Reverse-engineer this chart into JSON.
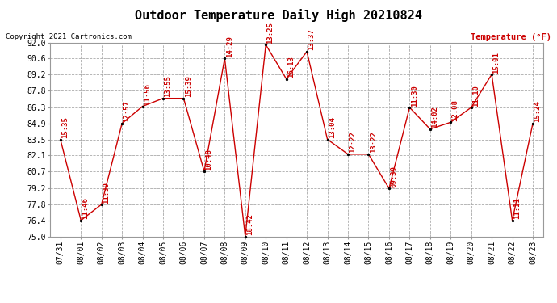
{
  "title": "Outdoor Temperature Daily High 20210824",
  "copyright": "Copyright 2021 Cartronics.com",
  "ylabel": "Temperature (°F)",
  "dates": [
    "07/31",
    "08/01",
    "08/02",
    "08/03",
    "08/04",
    "08/05",
    "08/06",
    "08/07",
    "08/08",
    "08/09",
    "08/10",
    "08/11",
    "08/12",
    "08/13",
    "08/14",
    "08/15",
    "08/16",
    "08/17",
    "08/18",
    "08/19",
    "08/20",
    "08/21",
    "08/22",
    "08/23"
  ],
  "temps": [
    83.5,
    76.4,
    77.8,
    84.9,
    86.4,
    87.1,
    87.1,
    80.7,
    90.6,
    75.0,
    91.8,
    88.8,
    91.2,
    83.5,
    82.2,
    82.2,
    79.2,
    86.3,
    84.4,
    85.0,
    86.3,
    89.2,
    76.4,
    84.9
  ],
  "times": [
    "15:35",
    "11:46",
    "11:39",
    "12:57",
    "11:56",
    "13:55",
    "15:39",
    "10:48",
    "14:29",
    "18:42",
    "13:25",
    "16:13",
    "13:37",
    "13:04",
    "12:22",
    "13:22",
    "09:39",
    "11:30",
    "14:02",
    "12:08",
    "11:10",
    "15:01",
    "11:11",
    "15:24"
  ],
  "ylim_min": 75.0,
  "ylim_max": 92.0,
  "yticks": [
    75.0,
    76.4,
    77.8,
    79.2,
    80.7,
    82.1,
    83.5,
    84.9,
    86.3,
    87.8,
    89.2,
    90.6,
    92.0
  ],
  "line_color": "#cc0000",
  "marker_color": "#000000",
  "bg_color": "#ffffff",
  "grid_color": "#aaaaaa",
  "title_fontsize": 11,
  "tick_fontsize": 7,
  "annotation_fontsize": 6.5,
  "copyright_fontsize": 6.5,
  "ylabel_fontsize": 7.5
}
